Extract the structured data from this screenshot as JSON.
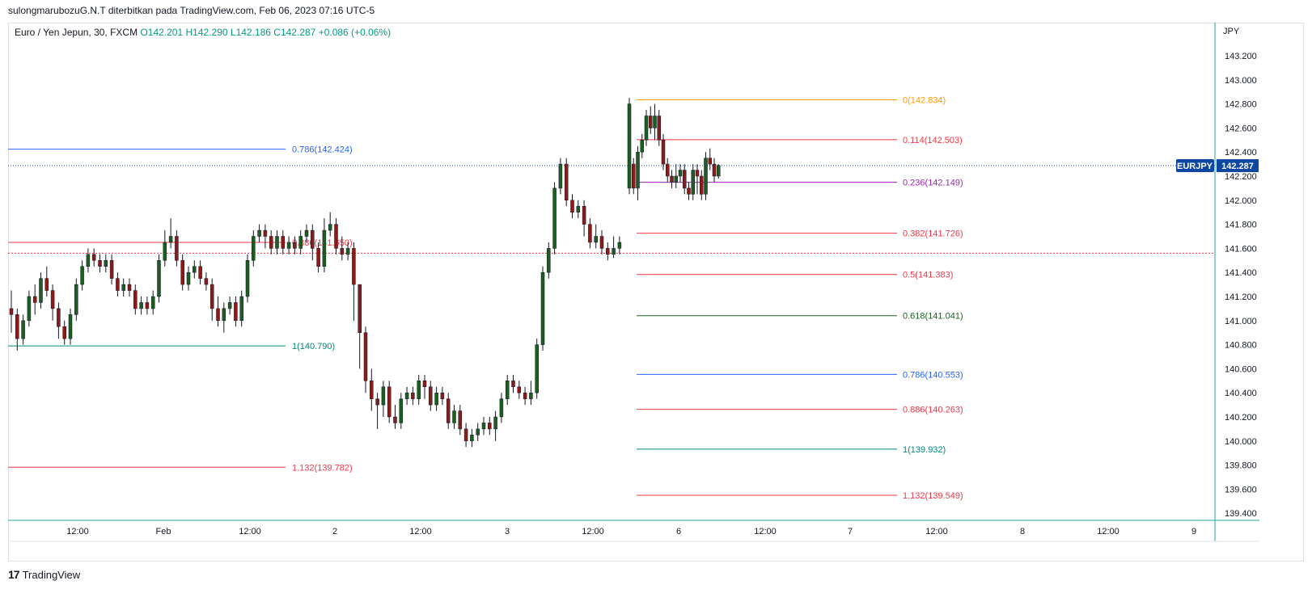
{
  "header": {
    "publish_line": "sulongmarubozuG.N.T diterbitkan pada TradingView.com, Feb 06, 2023 07:16 UTC-5"
  },
  "legend": {
    "symbol_line": "Euro / Yen Jepun, 30, FXCM",
    "open": "O142.201",
    "high": "H142.290",
    "low": "L142.186",
    "close": "C142.287",
    "change": "+0.086 (+0.06%)"
  },
  "brand": {
    "logo_text": "17",
    "name": "TradingView"
  },
  "chart_data": {
    "type": "candlestick",
    "currency_label": "JPY",
    "symbol": "EURJPY",
    "last_price": "142.287",
    "ylim": [
      139.35,
      143.4
    ],
    "y_ticks": [
      "143.200",
      "143.000",
      "142.800",
      "142.600",
      "142.400",
      "142.200",
      "142.000",
      "141.800",
      "141.600",
      "141.400",
      "141.200",
      "141.000",
      "140.800",
      "140.600",
      "140.400",
      "140.200",
      "140.000",
      "139.800",
      "139.600",
      "139.400"
    ],
    "x_ticks": [
      "12:00",
      "Feb",
      "12:00",
      "2",
      "12:00",
      "3",
      "12:00",
      "6",
      "12:00",
      "7",
      "12:00",
      "8",
      "12:00",
      "9"
    ],
    "colors": {
      "up": "#1b5e20",
      "down": "#8b1a1a",
      "last_price_badge": "#0d47a1",
      "fib_red": "#f23645",
      "fib_blue": "#2962ff",
      "fib_teal": "#00897b",
      "fib_orange": "#ff9800",
      "fib_purple": "#9c27b0",
      "fib_green": "#1b5e20"
    },
    "fib_left": [
      {
        "label": "0.786(142.424)",
        "value": 142.424,
        "color": "#2962ff"
      },
      {
        "label": "0.886(141.650)",
        "value": 141.65,
        "color": "#f23645"
      },
      {
        "label": "1(140.790)",
        "value": 140.79,
        "color": "#00897b"
      },
      {
        "label": "1.132(139.782)",
        "value": 139.782,
        "color": "#f23645"
      }
    ],
    "fib_right": [
      {
        "label": "0(142.834)",
        "value": 142.834,
        "color": "#ff9800"
      },
      {
        "label": "0.114(142.503)",
        "value": 142.503,
        "color": "#f23645"
      },
      {
        "label": "0.236(142.149)",
        "value": 142.149,
        "color": "#9c27b0"
      },
      {
        "label": "0.382(141.726)",
        "value": 141.726,
        "color": "#f23645"
      },
      {
        "label": "0.5(141.383)",
        "value": 141.383,
        "color": "#f23645"
      },
      {
        "label": "0.618(141.041)",
        "value": 141.041,
        "color": "#1b5e20"
      },
      {
        "label": "0.786(140.553)",
        "value": 140.553,
        "color": "#2962ff"
      },
      {
        "label": "0.886(140.263)",
        "value": 140.263,
        "color": "#f23645"
      },
      {
        "label": "1(139.932)",
        "value": 139.932,
        "color": "#00897b"
      },
      {
        "label": "1.132(139.549)",
        "value": 139.549,
        "color": "#f23645"
      }
    ],
    "reference_line": 141.56,
    "candles": [
      [
        141.1,
        141.05,
        141.25,
        140.9
      ],
      [
        141.05,
        140.85,
        141.1,
        140.75
      ],
      [
        140.85,
        141.0,
        141.05,
        140.8
      ],
      [
        141.0,
        141.2,
        141.25,
        140.95
      ],
      [
        141.2,
        141.15,
        141.3,
        141.05
      ],
      [
        141.15,
        141.35,
        141.4,
        141.1
      ],
      [
        141.35,
        141.25,
        141.45,
        141.2
      ],
      [
        141.25,
        141.1,
        141.3,
        141.0
      ],
      [
        141.1,
        140.95,
        141.15,
        140.85
      ],
      [
        140.95,
        140.85,
        141.0,
        140.8
      ],
      [
        140.85,
        141.05,
        141.1,
        140.8
      ],
      [
        141.05,
        141.3,
        141.35,
        141.0
      ],
      [
        141.3,
        141.45,
        141.5,
        141.25
      ],
      [
        141.45,
        141.55,
        141.6,
        141.4
      ],
      [
        141.55,
        141.5,
        141.6,
        141.45
      ],
      [
        141.5,
        141.45,
        141.55,
        141.4
      ],
      [
        141.45,
        141.5,
        141.55,
        141.4
      ],
      [
        141.5,
        141.35,
        141.55,
        141.3
      ],
      [
        141.35,
        141.25,
        141.4,
        141.2
      ],
      [
        141.25,
        141.3,
        141.35,
        141.2
      ],
      [
        141.3,
        141.25,
        141.35,
        141.2
      ],
      [
        141.25,
        141.1,
        141.3,
        141.05
      ],
      [
        141.1,
        141.15,
        141.2,
        141.05
      ],
      [
        141.15,
        141.1,
        141.2,
        141.05
      ],
      [
        141.1,
        141.2,
        141.25,
        141.05
      ],
      [
        141.2,
        141.5,
        141.55,
        141.15
      ],
      [
        141.5,
        141.65,
        141.75,
        141.45
      ],
      [
        141.65,
        141.7,
        141.85,
        141.6
      ],
      [
        141.7,
        141.5,
        141.75,
        141.45
      ],
      [
        141.5,
        141.3,
        141.55,
        141.25
      ],
      [
        141.3,
        141.4,
        141.45,
        141.25
      ],
      [
        141.4,
        141.45,
        141.5,
        141.35
      ],
      [
        141.45,
        141.35,
        141.5,
        141.3
      ],
      [
        141.35,
        141.3,
        141.4,
        141.25
      ],
      [
        141.3,
        141.1,
        141.35,
        141.0
      ],
      [
        141.1,
        141.0,
        141.2,
        140.95
      ],
      [
        141.0,
        141.1,
        141.15,
        140.9
      ],
      [
        141.1,
        141.15,
        141.2,
        141.05
      ],
      [
        141.15,
        141.0,
        141.2,
        140.95
      ],
      [
        141.0,
        141.2,
        141.25,
        140.95
      ],
      [
        141.2,
        141.5,
        141.55,
        141.15
      ],
      [
        141.5,
        141.7,
        141.75,
        141.45
      ],
      [
        141.7,
        141.75,
        141.8,
        141.65
      ],
      [
        141.75,
        141.7,
        141.8,
        141.6
      ],
      [
        141.7,
        141.6,
        141.75,
        141.55
      ],
      [
        141.6,
        141.7,
        141.75,
        141.55
      ],
      [
        141.7,
        141.6,
        141.75,
        141.55
      ],
      [
        141.6,
        141.65,
        141.7,
        141.55
      ],
      [
        141.65,
        141.6,
        141.7,
        141.55
      ],
      [
        141.6,
        141.7,
        141.75,
        141.55
      ],
      [
        141.7,
        141.75,
        141.8,
        141.65
      ],
      [
        141.75,
        141.6,
        141.8,
        141.5
      ],
      [
        141.6,
        141.45,
        141.65,
        141.4
      ],
      [
        141.45,
        141.75,
        141.85,
        141.4
      ],
      [
        141.75,
        141.8,
        141.9,
        141.7
      ],
      [
        141.8,
        141.6,
        141.85,
        141.55
      ],
      [
        141.6,
        141.55,
        141.7,
        141.5
      ],
      [
        141.55,
        141.6,
        141.65,
        141.5
      ],
      [
        141.6,
        141.3,
        141.65,
        141.0
      ],
      [
        141.3,
        140.9,
        141.3,
        140.6
      ],
      [
        140.9,
        140.5,
        140.95,
        140.4
      ],
      [
        140.5,
        140.35,
        140.6,
        140.25
      ],
      [
        140.35,
        140.3,
        140.4,
        140.1
      ],
      [
        140.3,
        140.45,
        140.5,
        140.2
      ],
      [
        140.45,
        140.2,
        140.5,
        140.15
      ],
      [
        140.2,
        140.15,
        140.3,
        140.1
      ],
      [
        140.15,
        140.35,
        140.4,
        140.1
      ],
      [
        140.35,
        140.4,
        140.45,
        140.3
      ],
      [
        140.4,
        140.35,
        140.45,
        140.3
      ],
      [
        140.35,
        140.5,
        140.55,
        140.3
      ],
      [
        140.5,
        140.45,
        140.55,
        140.35
      ],
      [
        140.45,
        140.3,
        140.5,
        140.25
      ],
      [
        140.3,
        140.4,
        140.45,
        140.25
      ],
      [
        140.4,
        140.35,
        140.45,
        140.3
      ],
      [
        140.35,
        140.15,
        140.4,
        140.1
      ],
      [
        140.15,
        140.25,
        140.3,
        140.1
      ],
      [
        140.25,
        140.1,
        140.3,
        140.05
      ],
      [
        140.1,
        140.0,
        140.15,
        139.95
      ],
      [
        140.0,
        140.05,
        140.1,
        139.95
      ],
      [
        140.05,
        140.1,
        140.15,
        140.0
      ],
      [
        140.1,
        140.15,
        140.2,
        140.05
      ],
      [
        140.15,
        140.1,
        140.2,
        140.05
      ],
      [
        140.1,
        140.2,
        140.25,
        140.0
      ],
      [
        140.2,
        140.35,
        140.4,
        140.15
      ],
      [
        140.35,
        140.5,
        140.55,
        140.3
      ],
      [
        140.5,
        140.45,
        140.55,
        140.4
      ],
      [
        140.45,
        140.4,
        140.5,
        140.35
      ],
      [
        140.4,
        140.35,
        140.45,
        140.3
      ],
      [
        140.35,
        140.4,
        140.5,
        140.3
      ],
      [
        140.4,
        140.8,
        140.85,
        140.35
      ],
      [
        140.8,
        141.4,
        141.45,
        140.75
      ],
      [
        141.4,
        141.6,
        141.65,
        141.35
      ],
      [
        141.6,
        142.1,
        142.15,
        141.55
      ],
      [
        142.1,
        142.3,
        142.35,
        142.05
      ],
      [
        142.3,
        142.0,
        142.35,
        141.95
      ],
      [
        142.0,
        141.9,
        142.05,
        141.85
      ],
      [
        141.9,
        141.95,
        142.0,
        141.85
      ],
      [
        141.95,
        141.8,
        142.0,
        141.7
      ],
      [
        141.8,
        141.65,
        141.85,
        141.6
      ],
      [
        141.65,
        141.7,
        141.8,
        141.6
      ],
      [
        141.7,
        141.6,
        141.75,
        141.55
      ],
      [
        141.6,
        141.55,
        141.65,
        141.5
      ],
      [
        141.55,
        141.6,
        141.7,
        141.52
      ],
      [
        141.6,
        141.65,
        141.7,
        141.55
      ],
      [
        142.1,
        142.8,
        142.85,
        142.05
      ],
      [
        142.3,
        142.1,
        142.35,
        142.05
      ],
      [
        142.1,
        142.4,
        142.45,
        142.0
      ],
      [
        142.4,
        142.5,
        142.55,
        142.35
      ],
      [
        142.5,
        142.7,
        142.75,
        142.45
      ],
      [
        142.7,
        142.6,
        142.78,
        142.55
      ],
      [
        142.6,
        142.7,
        142.8,
        142.5
      ],
      [
        142.7,
        142.5,
        142.75,
        142.45
      ],
      [
        142.5,
        142.3,
        142.55,
        142.25
      ],
      [
        142.3,
        142.2,
        142.35,
        142.15
      ],
      [
        142.2,
        142.15,
        142.25,
        142.1
      ],
      [
        142.15,
        142.2,
        142.3,
        142.1
      ],
      [
        142.2,
        142.25,
        142.3,
        142.15
      ],
      [
        142.25,
        142.1,
        142.3,
        142.05
      ],
      [
        142.1,
        142.05,
        142.15,
        142.0
      ],
      [
        142.05,
        142.25,
        142.3,
        142.0
      ],
      [
        142.25,
        142.2,
        142.3,
        142.05
      ],
      [
        142.2,
        142.05,
        142.25,
        142.0
      ],
      [
        142.05,
        142.35,
        142.4,
        142.0
      ],
      [
        142.35,
        142.3,
        142.43,
        142.25
      ],
      [
        142.3,
        142.2,
        142.35,
        142.15
      ],
      [
        142.2,
        142.29,
        142.3,
        142.18
      ]
    ]
  }
}
